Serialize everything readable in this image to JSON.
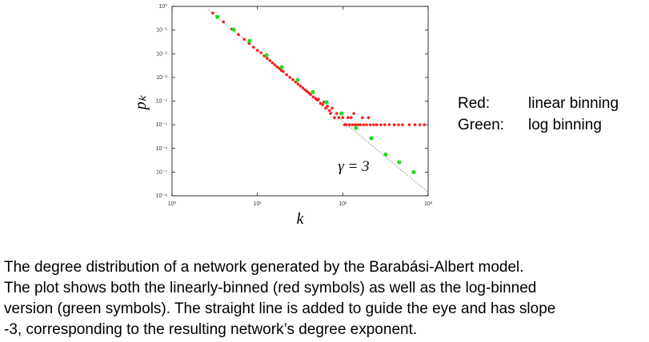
{
  "chart_data": {
    "type": "scatter",
    "x_label": "k",
    "y_label": "pₖ",
    "annotation": "γ = 3",
    "xscale": "log",
    "yscale": "log",
    "grid": false,
    "xlim": [
      1,
      1000
    ],
    "ylim": [
      1e-08,
      1
    ],
    "xticks": [
      {
        "value": 1,
        "label": "10⁰"
      },
      {
        "value": 10,
        "label": "10¹"
      },
      {
        "value": 100,
        "label": "10²"
      },
      {
        "value": 1000,
        "label": "10³"
      }
    ],
    "yticks": [
      {
        "value": 1e-08,
        "label": "10⁻⁸"
      },
      {
        "value": 1e-07,
        "label": "10⁻⁷"
      },
      {
        "value": 1e-06,
        "label": "10⁻⁶"
      },
      {
        "value": 1e-05,
        "label": "10⁻⁵"
      },
      {
        "value": 0.0001,
        "label": "10⁻⁴"
      },
      {
        "value": 0.001,
        "label": "10⁻³"
      },
      {
        "value": 0.01,
        "label": "10⁻²"
      },
      {
        "value": 0.1,
        "label": "10⁻¹"
      },
      {
        "value": 1,
        "label": "10⁰"
      }
    ],
    "guide_line": {
      "color": "#777777",
      "x": [
        2.7,
        1000
      ],
      "values": [
        0.7,
        1.4e-08
      ]
    },
    "series": [
      {
        "name": "linear binning",
        "key": "Red:",
        "color": "#ff1a1a",
        "size": 1.8,
        "x": [
          3,
          4,
          5,
          6,
          7,
          8,
          9,
          10,
          11,
          12,
          13,
          14,
          15,
          16,
          17,
          18,
          19,
          20,
          22,
          24,
          26,
          28,
          30,
          32,
          34,
          36,
          38,
          40,
          42,
          45,
          48,
          50,
          52,
          55,
          58,
          60,
          63,
          66,
          70,
          72,
          75,
          80,
          85,
          90,
          95,
          100,
          105,
          110,
          120,
          130,
          140,
          150,
          160,
          175,
          190,
          210,
          230,
          250,
          280,
          310,
          350,
          400,
          450,
          500,
          600,
          700,
          800,
          900,
          115,
          125,
          170,
          200,
          135
        ],
        "values": [
          0.52,
          0.22,
          0.11,
          0.065,
          0.041,
          0.027,
          0.019,
          0.014,
          0.011,
          0.0081,
          0.0064,
          0.0051,
          0.0041,
          0.0034,
          0.0028,
          0.0024,
          0.002,
          0.0018,
          0.0013,
          0.001,
          0.0008,
          0.00064,
          0.00052,
          0.00043,
          0.00036,
          0.0003,
          0.00026,
          0.00022,
          0.00019,
          0.00015,
          0.00013,
          0.00011,
          0.00012,
          8e-05,
          7e-05,
          9e-05,
          5e-05,
          6e-05,
          4e-05,
          3e-05,
          5e-05,
          2e-05,
          3e-05,
          2e-05,
          3e-05,
          2e-05,
          1e-05,
          1e-05,
          1e-05,
          1e-05,
          1e-05,
          1e-05,
          1e-05,
          1e-05,
          1e-05,
          1e-05,
          1e-05,
          1e-05,
          1e-05,
          1e-05,
          1e-05,
          1e-05,
          1e-05,
          1e-05,
          1e-05,
          1e-05,
          1e-05,
          1e-05,
          2e-05,
          2e-05,
          2e-05,
          2e-05,
          3e-05
        ]
      },
      {
        "name": "log binning",
        "key": "Green:",
        "color": "#22dd22",
        "size": 2.6,
        "x": [
          3.4,
          5.3,
          8.1,
          12.8,
          19.2,
          29.6,
          44.6,
          64.5,
          97,
          143,
          216,
          318,
          459,
          676
        ],
        "values": [
          0.36,
          0.105,
          0.035,
          0.0087,
          0.0027,
          0.00078,
          0.00024,
          8.9e-05,
          3e-05,
          7.3e-06,
          2.7e-06,
          5.6e-07,
          2.6e-07,
          1e-07
        ]
      }
    ]
  },
  "caption": [
    "The degree distribution of a network generated by the Barabási-Albert model.",
    "The plot shows both the linearly-binned (red symbols) as well as the log-binned",
    "version (green symbols). The straight line is added to guide the eye and has slope",
    "-3, corresponding to the resulting network’s degree exponent."
  ]
}
